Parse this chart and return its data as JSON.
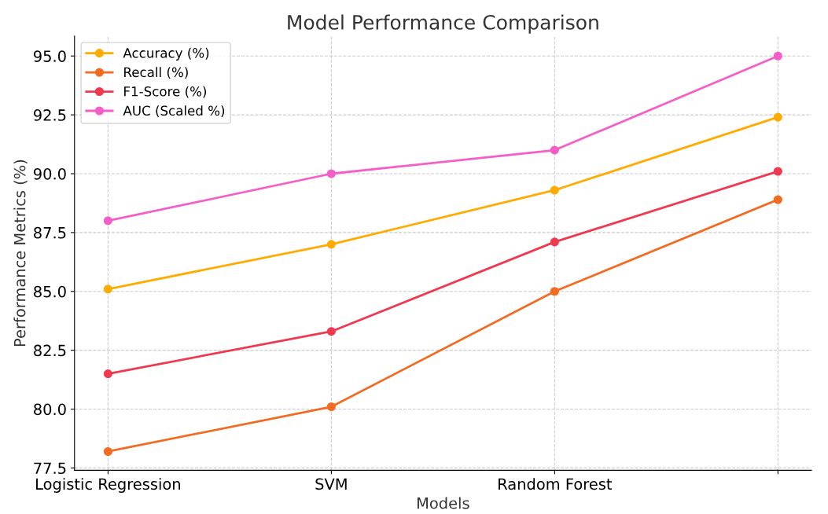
{
  "chart_data": {
    "type": "line",
    "title": "Model Performance Comparison",
    "xlabel": "Models",
    "ylabel": "Performance Metrics (%)",
    "categories": [
      "Logistic Regression",
      "SVM",
      "Random Forest",
      null
    ],
    "series": [
      {
        "name": "Accuracy (%)",
        "color": "#ffab00",
        "values": [
          85.1,
          87.0,
          89.3,
          92.4
        ]
      },
      {
        "name": "Recall (%)",
        "color": "#f26b21",
        "values": [
          78.2,
          80.1,
          85.0,
          88.9
        ]
      },
      {
        "name": "F1-Score (%)",
        "color": "#f0384e",
        "values": [
          81.5,
          83.3,
          87.1,
          90.1
        ]
      },
      {
        "name": "AUC (Scaled %)",
        "color": "#f55dc8",
        "values": [
          88.0,
          90.0,
          91.0,
          95.0
        ]
      }
    ],
    "ylim": [
      77.4,
      95.85
    ],
    "yticks": [
      {
        "value": 77.5,
        "label": "77.5"
      },
      {
        "value": 80,
        "label": "80.0"
      },
      {
        "value": 82.5,
        "label": "82.5"
      },
      {
        "value": 85,
        "label": "85.0"
      },
      {
        "value": 87.5,
        "label": "87.5"
      },
      {
        "value": 90,
        "label": "90.0"
      },
      {
        "value": 92.5,
        "label": "92.5"
      },
      {
        "value": 95,
        "label": "95.0"
      }
    ],
    "grid": true,
    "legend": "top left",
    "marker": "circle",
    "line_style": "solid"
  }
}
